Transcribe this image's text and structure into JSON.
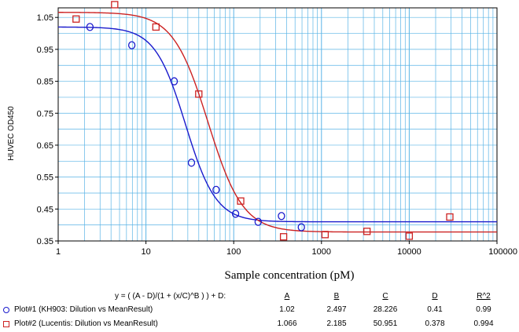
{
  "chart_data": {
    "type": "scatter",
    "xscale": "log",
    "xlim": [
      1,
      100000
    ],
    "ylim": [
      0.35,
      1.08
    ],
    "xticks": [
      "1",
      "10",
      "100",
      "1000",
      "10000",
      "100000"
    ],
    "yticks": [
      "0.35",
      "0.45",
      "0.55",
      "0.65",
      "0.75",
      "0.85",
      "0.95",
      "1.05"
    ],
    "xlabel": "Sample concentration (pM)",
    "ylabel": "HUVEC OD450",
    "grid": true,
    "equation": "y = ( (A - D)/(1 + (x/C)^B ) ) + D:",
    "param_headers": [
      "A",
      "B",
      "C",
      "D",
      "R^2"
    ],
    "series": [
      {
        "name": "Plot#1 (KH903: Dilution vs MeanResult)",
        "marker": "circle",
        "color": "#1a1acc",
        "params": {
          "A": "1.02",
          "B": "2.497",
          "C": "28.226",
          "D": "0.41",
          "R2": "0.99"
        },
        "points": [
          {
            "x": 2.3,
            "y": 1.02
          },
          {
            "x": 6.9,
            "y": 0.963
          },
          {
            "x": 21,
            "y": 0.85
          },
          {
            "x": 33,
            "y": 0.595
          },
          {
            "x": 63,
            "y": 0.51
          },
          {
            "x": 105,
            "y": 0.435
          },
          {
            "x": 190,
            "y": 0.41
          },
          {
            "x": 350,
            "y": 0.428
          },
          {
            "x": 590,
            "y": 0.393
          }
        ]
      },
      {
        "name": "Plot#2 (Lucentis: Dilution vs MeanResult)",
        "marker": "square",
        "color": "#cc2222",
        "params": {
          "A": "1.066",
          "B": "2.185",
          "C": "50.951",
          "D": "0.378",
          "R2": "0.994"
        },
        "points": [
          {
            "x": 1.6,
            "y": 1.045
          },
          {
            "x": 4.4,
            "y": 1.09
          },
          {
            "x": 13,
            "y": 1.02
          },
          {
            "x": 40,
            "y": 0.81
          },
          {
            "x": 120,
            "y": 0.475
          },
          {
            "x": 370,
            "y": 0.363
          },
          {
            "x": 1100,
            "y": 0.37
          },
          {
            "x": 3300,
            "y": 0.38
          },
          {
            "x": 10000,
            "y": 0.365
          },
          {
            "x": 29000,
            "y": 0.425
          }
        ]
      }
    ]
  }
}
